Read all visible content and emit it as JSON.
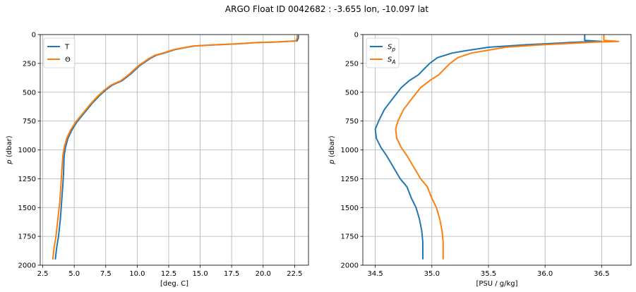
{
  "figure": {
    "title": "ARGO Float ID 0042682 : -3.655 lon, -10.097 lat"
  },
  "chart_data": [
    {
      "type": "line",
      "xlabel": "[deg. C]",
      "ylabel": "p (dbar)",
      "y_inverted": true,
      "xlim": [
        2.3,
        23.6
      ],
      "ylim": [
        2000,
        0
      ],
      "xticks": [
        "2.5",
        "5.0",
        "7.5",
        "10.0",
        "12.5",
        "15.0",
        "17.5",
        "20.0",
        "22.5"
      ],
      "xtick_values": [
        2.5,
        5.0,
        7.5,
        10.0,
        12.5,
        15.0,
        17.5,
        20.0,
        22.5
      ],
      "yticks": [
        "0",
        "250",
        "500",
        "750",
        "1000",
        "1250",
        "1500",
        "1750",
        "2000"
      ],
      "ytick_values": [
        0,
        250,
        500,
        750,
        1000,
        1250,
        1500,
        1750,
        2000
      ],
      "grid": true,
      "legend_position": "upper-left",
      "series": [
        {
          "name": "T",
          "color": "#1f77b4",
          "points": [
            [
              22.8,
              5
            ],
            [
              22.8,
              30
            ],
            [
              22.7,
              55
            ],
            [
              21.0,
              65
            ],
            [
              19.5,
              70
            ],
            [
              18.0,
              80
            ],
            [
              16.0,
              90
            ],
            [
              14.5,
              100
            ],
            [
              13.0,
              130
            ],
            [
              12.0,
              165
            ],
            [
              11.5,
              180
            ],
            [
              11.0,
              210
            ],
            [
              10.2,
              270
            ],
            [
              9.5,
              340
            ],
            [
              8.8,
              400
            ],
            [
              8.0,
              440
            ],
            [
              7.5,
              480
            ],
            [
              7.0,
              530
            ],
            [
              6.4,
              600
            ],
            [
              5.8,
              680
            ],
            [
              5.2,
              760
            ],
            [
              4.8,
              830
            ],
            [
              4.5,
              900
            ],
            [
              4.3,
              980
            ],
            [
              4.2,
              1050
            ],
            [
              4.15,
              1200
            ],
            [
              4.1,
              1300
            ],
            [
              4.0,
              1450
            ],
            [
              3.9,
              1600
            ],
            [
              3.75,
              1750
            ],
            [
              3.6,
              1850
            ],
            [
              3.5,
              1950
            ]
          ]
        },
        {
          "name": "Θ",
          "color": "#ff7f0e",
          "points": [
            [
              22.7,
              5
            ],
            [
              22.7,
              30
            ],
            [
              22.6,
              55
            ],
            [
              20.9,
              65
            ],
            [
              19.4,
              70
            ],
            [
              17.9,
              80
            ],
            [
              15.9,
              90
            ],
            [
              14.4,
              100
            ],
            [
              12.9,
              130
            ],
            [
              11.9,
              165
            ],
            [
              11.4,
              180
            ],
            [
              10.9,
              210
            ],
            [
              10.1,
              270
            ],
            [
              9.4,
              340
            ],
            [
              8.7,
              400
            ],
            [
              7.9,
              440
            ],
            [
              7.4,
              480
            ],
            [
              6.9,
              530
            ],
            [
              6.3,
              600
            ],
            [
              5.7,
              680
            ],
            [
              5.1,
              760
            ],
            [
              4.7,
              830
            ],
            [
              4.4,
              900
            ],
            [
              4.2,
              980
            ],
            [
              4.1,
              1050
            ],
            [
              4.0,
              1200
            ],
            [
              3.95,
              1300
            ],
            [
              3.85,
              1450
            ],
            [
              3.7,
              1600
            ],
            [
              3.55,
              1750
            ],
            [
              3.4,
              1850
            ],
            [
              3.3,
              1950
            ]
          ]
        }
      ]
    },
    {
      "type": "line",
      "xlabel": "[PSU / g/kg]",
      "ylabel": "p (dbar)",
      "y_inverted": true,
      "xlim": [
        34.39,
        36.76
      ],
      "ylim": [
        2000,
        0
      ],
      "xticks": [
        "34.5",
        "35.0",
        "35.5",
        "36.0",
        "36.5"
      ],
      "xtick_values": [
        34.5,
        35.0,
        35.5,
        36.0,
        36.5
      ],
      "yticks": [
        "0",
        "250",
        "500",
        "750",
        "1000",
        "1250",
        "1500",
        "1750",
        "2000"
      ],
      "ytick_values": [
        0,
        250,
        500,
        750,
        1000,
        1250,
        1500,
        1750,
        2000
      ],
      "grid": true,
      "legend_position": "upper-left",
      "series": [
        {
          "name": "S_p",
          "name_main": "S",
          "name_sub": "p",
          "color": "#1f77b4",
          "points": [
            [
              36.35,
              0
            ],
            [
              36.35,
              50
            ],
            [
              36.5,
              60
            ],
            [
              36.3,
              65
            ],
            [
              36.0,
              80
            ],
            [
              35.8,
              90
            ],
            [
              35.5,
              110
            ],
            [
              35.3,
              140
            ],
            [
              35.18,
              160
            ],
            [
              35.05,
              200
            ],
            [
              34.98,
              250
            ],
            [
              34.93,
              300
            ],
            [
              34.88,
              350
            ],
            [
              34.8,
              400
            ],
            [
              34.73,
              460
            ],
            [
              34.65,
              560
            ],
            [
              34.58,
              650
            ],
            [
              34.53,
              750
            ],
            [
              34.5,
              820
            ],
            [
              34.51,
              900
            ],
            [
              34.55,
              980
            ],
            [
              34.6,
              1050
            ],
            [
              34.66,
              1150
            ],
            [
              34.72,
              1250
            ],
            [
              34.78,
              1320
            ],
            [
              34.82,
              1420
            ],
            [
              34.86,
              1500
            ],
            [
              34.89,
              1600
            ],
            [
              34.91,
              1700
            ],
            [
              34.92,
              1800
            ],
            [
              34.92,
              1950
            ]
          ]
        },
        {
          "name": "S_A",
          "name_main": "S",
          "name_sub": "A",
          "color": "#ff7f0e",
          "points": [
            [
              36.52,
              0
            ],
            [
              36.52,
              50
            ],
            [
              36.65,
              60
            ],
            [
              36.45,
              65
            ],
            [
              36.15,
              80
            ],
            [
              35.95,
              90
            ],
            [
              35.65,
              110
            ],
            [
              35.47,
              140
            ],
            [
              35.35,
              160
            ],
            [
              35.23,
              200
            ],
            [
              35.16,
              250
            ],
            [
              35.11,
              300
            ],
            [
              35.06,
              350
            ],
            [
              34.98,
              400
            ],
            [
              34.9,
              460
            ],
            [
              34.82,
              560
            ],
            [
              34.75,
              650
            ],
            [
              34.7,
              750
            ],
            [
              34.68,
              820
            ],
            [
              34.69,
              900
            ],
            [
              34.73,
              980
            ],
            [
              34.78,
              1050
            ],
            [
              34.84,
              1150
            ],
            [
              34.9,
              1250
            ],
            [
              34.96,
              1320
            ],
            [
              35.0,
              1420
            ],
            [
              35.04,
              1500
            ],
            [
              35.07,
              1600
            ],
            [
              35.09,
              1700
            ],
            [
              35.1,
              1800
            ],
            [
              35.1,
              1950
            ]
          ]
        }
      ]
    }
  ]
}
